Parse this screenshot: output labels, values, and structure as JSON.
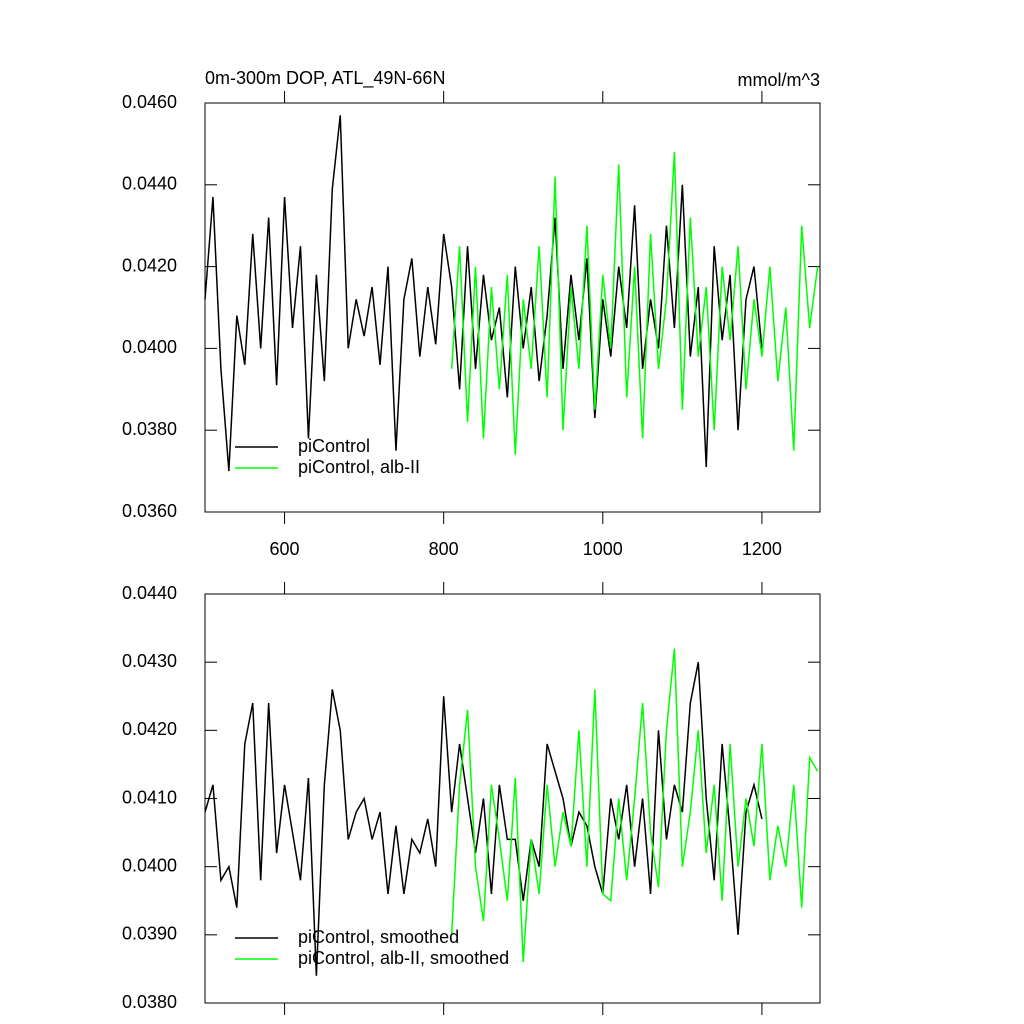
{
  "chart_data": [
    {
      "type": "line",
      "title": "0m-300m DOP, ATL_49N-66N",
      "units": "mmol/m^3",
      "xlim": [
        500,
        1273
      ],
      "xticks": [
        600,
        800,
        1000,
        1200
      ],
      "show_xtick_labels": true,
      "ylim": [
        0.036,
        0.046
      ],
      "yticks": [
        {
          "value": 0.036,
          "label": "0.0360"
        },
        {
          "value": 0.038,
          "label": "0.0380"
        },
        {
          "value": 0.04,
          "label": "0.0400"
        },
        {
          "value": 0.042,
          "label": "0.0420"
        },
        {
          "value": 0.044,
          "label": "0.0440"
        },
        {
          "value": 0.046,
          "label": "0.0460"
        }
      ],
      "legend": "lower left",
      "series": [
        {
          "name": "piControl",
          "color": "#000000",
          "x": [
            500,
            510,
            520,
            530,
            540,
            550,
            560,
            570,
            580,
            590,
            600,
            610,
            620,
            630,
            640,
            650,
            660,
            670,
            680,
            690,
            700,
            710,
            720,
            730,
            740,
            750,
            760,
            770,
            780,
            790,
            800,
            810,
            820,
            830,
            840,
            850,
            860,
            870,
            880,
            890,
            900,
            910,
            920,
            930,
            940,
            950,
            960,
            970,
            980,
            990,
            1000,
            1010,
            1020,
            1030,
            1040,
            1050,
            1060,
            1070,
            1080,
            1090,
            1100,
            1110,
            1120,
            1130,
            1140,
            1150,
            1160,
            1170,
            1180,
            1190,
            1200
          ],
          "values": [
            0.0412,
            0.0437,
            0.0395,
            0.037,
            0.0408,
            0.0396,
            0.0428,
            0.04,
            0.0432,
            0.0391,
            0.0437,
            0.0405,
            0.0425,
            0.0378,
            0.0418,
            0.0392,
            0.0439,
            0.0457,
            0.04,
            0.0412,
            0.0403,
            0.0415,
            0.0396,
            0.042,
            0.0375,
            0.0412,
            0.0422,
            0.0398,
            0.0415,
            0.0401,
            0.0428,
            0.0415,
            0.039,
            0.0425,
            0.0395,
            0.0418,
            0.0402,
            0.041,
            0.0388,
            0.042,
            0.04,
            0.0415,
            0.0392,
            0.0408,
            0.0432,
            0.0395,
            0.0418,
            0.0402,
            0.0422,
            0.0383,
            0.0412,
            0.0398,
            0.042,
            0.0405,
            0.0435,
            0.0395,
            0.0412,
            0.04,
            0.043,
            0.0405,
            0.044,
            0.0398,
            0.0415,
            0.0371,
            0.0425,
            0.0402,
            0.0418,
            0.038,
            0.0412,
            0.042,
            0.04
          ]
        },
        {
          "name": "piControl, alb-II",
          "color": "#00ff00",
          "x": [
            810,
            820,
            830,
            840,
            850,
            860,
            870,
            880,
            890,
            900,
            910,
            920,
            930,
            940,
            950,
            960,
            970,
            980,
            990,
            1000,
            1010,
            1020,
            1030,
            1040,
            1050,
            1060,
            1070,
            1080,
            1090,
            1100,
            1110,
            1120,
            1130,
            1140,
            1150,
            1160,
            1170,
            1180,
            1190,
            1200,
            1210,
            1220,
            1230,
            1240,
            1250,
            1260,
            1270
          ],
          "values": [
            0.0395,
            0.0425,
            0.0382,
            0.042,
            0.0378,
            0.0415,
            0.039,
            0.0418,
            0.0374,
            0.0412,
            0.0395,
            0.0425,
            0.0388,
            0.0442,
            0.038,
            0.0415,
            0.0395,
            0.043,
            0.0385,
            0.0418,
            0.04,
            0.0445,
            0.0388,
            0.042,
            0.0378,
            0.0428,
            0.0395,
            0.0412,
            0.0448,
            0.0385,
            0.0432,
            0.0398,
            0.0415,
            0.038,
            0.042,
            0.0402,
            0.0425,
            0.039,
            0.0412,
            0.0398,
            0.042,
            0.0392,
            0.041,
            0.0375,
            0.043,
            0.0405,
            0.042
          ]
        }
      ]
    },
    {
      "type": "line",
      "xlim": [
        500,
        1273
      ],
      "xticks": [
        600,
        800,
        1000,
        1200
      ],
      "show_xtick_labels": false,
      "ylim": [
        0.038,
        0.044
      ],
      "yticks": [
        {
          "value": 0.038,
          "label": "0.0380"
        },
        {
          "value": 0.039,
          "label": "0.0390"
        },
        {
          "value": 0.04,
          "label": "0.0400"
        },
        {
          "value": 0.041,
          "label": "0.0410"
        },
        {
          "value": 0.042,
          "label": "0.0420"
        },
        {
          "value": 0.043,
          "label": "0.0430"
        },
        {
          "value": 0.044,
          "label": "0.0440"
        }
      ],
      "legend": "lower left",
      "series": [
        {
          "name": "piControl, smoothed",
          "color": "#000000",
          "x": [
            500,
            510,
            520,
            530,
            540,
            550,
            560,
            570,
            580,
            590,
            600,
            610,
            620,
            630,
            640,
            650,
            660,
            670,
            680,
            690,
            700,
            710,
            720,
            730,
            740,
            750,
            760,
            770,
            780,
            790,
            800,
            810,
            820,
            830,
            840,
            850,
            860,
            870,
            880,
            890,
            900,
            910,
            920,
            930,
            940,
            950,
            960,
            970,
            980,
            990,
            1000,
            1010,
            1020,
            1030,
            1040,
            1050,
            1060,
            1070,
            1080,
            1090,
            1100,
            1110,
            1120,
            1130,
            1140,
            1150,
            1160,
            1170,
            1180,
            1190,
            1200
          ],
          "values": [
            0.0408,
            0.0412,
            0.0398,
            0.04,
            0.0394,
            0.0418,
            0.0424,
            0.0398,
            0.0424,
            0.0402,
            0.0412,
            0.0405,
            0.0398,
            0.0413,
            0.0384,
            0.0412,
            0.0426,
            0.042,
            0.0404,
            0.0408,
            0.041,
            0.0404,
            0.0408,
            0.0396,
            0.0406,
            0.0396,
            0.0404,
            0.0402,
            0.0407,
            0.04,
            0.0425,
            0.0408,
            0.0418,
            0.041,
            0.0402,
            0.041,
            0.0396,
            0.0412,
            0.0404,
            0.0404,
            0.0395,
            0.0404,
            0.04,
            0.0418,
            0.0414,
            0.041,
            0.0403,
            0.0408,
            0.0406,
            0.04,
            0.0396,
            0.041,
            0.0404,
            0.0412,
            0.04,
            0.041,
            0.0396,
            0.042,
            0.0404,
            0.0412,
            0.0408,
            0.0424,
            0.043,
            0.041,
            0.0398,
            0.0418,
            0.0405,
            0.039,
            0.0408,
            0.0412,
            0.0407
          ]
        },
        {
          "name": "piControl, alb-II, smoothed",
          "color": "#00ff00",
          "x": [
            810,
            820,
            830,
            840,
            850,
            860,
            870,
            880,
            890,
            900,
            910,
            920,
            930,
            940,
            950,
            960,
            970,
            980,
            990,
            1000,
            1010,
            1020,
            1030,
            1040,
            1050,
            1060,
            1070,
            1080,
            1090,
            1100,
            1110,
            1120,
            1130,
            1140,
            1150,
            1160,
            1170,
            1180,
            1190,
            1200,
            1210,
            1220,
            1230,
            1240,
            1250,
            1260,
            1270
          ],
          "values": [
            0.039,
            0.0412,
            0.0423,
            0.04,
            0.0392,
            0.0412,
            0.0404,
            0.0395,
            0.0413,
            0.0386,
            0.0404,
            0.0396,
            0.0412,
            0.04,
            0.0408,
            0.0403,
            0.042,
            0.04,
            0.0426,
            0.0396,
            0.0395,
            0.041,
            0.0398,
            0.041,
            0.0424,
            0.0405,
            0.0397,
            0.042,
            0.0432,
            0.04,
            0.0408,
            0.042,
            0.0402,
            0.0412,
            0.0395,
            0.0418,
            0.04,
            0.041,
            0.0403,
            0.0418,
            0.0398,
            0.0406,
            0.04,
            0.0412,
            0.0394,
            0.0416,
            0.0414
          ]
        }
      ]
    }
  ]
}
